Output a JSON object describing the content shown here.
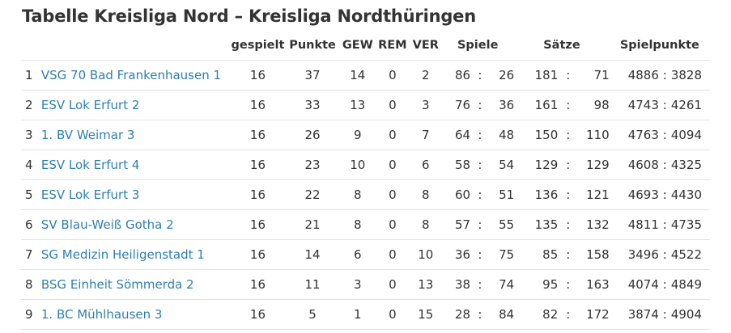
{
  "title": "Tabelle Kreisliga Nord – Kreisliga Nordthüringen",
  "headers": {
    "gespielt": "gespielt",
    "punkte": "Punkte",
    "gew": "GEW",
    "rem": "REM",
    "ver": "VER",
    "spiele": "Spiele",
    "saetze": "Sätze",
    "spielpunkte": "Spielpunkte"
  },
  "separator": ":",
  "rows": [
    {
      "rank": "1",
      "team": "VSG 70 Bad Frankenhausen 1",
      "gespielt": "16",
      "punkte": "37",
      "gew": "14",
      "rem": "0",
      "ver": "2",
      "spiele_w": "86",
      "spiele_l": "26",
      "saetze_w": "181",
      "saetze_l": "71",
      "sp_w": "4886",
      "sp_l": "3828"
    },
    {
      "rank": "2",
      "team": "ESV Lok Erfurt 2",
      "gespielt": "16",
      "punkte": "33",
      "gew": "13",
      "rem": "0",
      "ver": "3",
      "spiele_w": "76",
      "spiele_l": "36",
      "saetze_w": "161",
      "saetze_l": "98",
      "sp_w": "4743",
      "sp_l": "4261"
    },
    {
      "rank": "3",
      "team": "1. BV Weimar 3",
      "gespielt": "16",
      "punkte": "26",
      "gew": "9",
      "rem": "0",
      "ver": "7",
      "spiele_w": "64",
      "spiele_l": "48",
      "saetze_w": "150",
      "saetze_l": "110",
      "sp_w": "4763",
      "sp_l": "4094"
    },
    {
      "rank": "4",
      "team": "ESV Lok Erfurt 4",
      "gespielt": "16",
      "punkte": "23",
      "gew": "10",
      "rem": "0",
      "ver": "6",
      "spiele_w": "58",
      "spiele_l": "54",
      "saetze_w": "129",
      "saetze_l": "129",
      "sp_w": "4608",
      "sp_l": "4325"
    },
    {
      "rank": "5",
      "team": "ESV Lok Erfurt 3",
      "gespielt": "16",
      "punkte": "22",
      "gew": "8",
      "rem": "0",
      "ver": "8",
      "spiele_w": "60",
      "spiele_l": "51",
      "saetze_w": "136",
      "saetze_l": "121",
      "sp_w": "4693",
      "sp_l": "4430"
    },
    {
      "rank": "6",
      "team": "SV Blau-Weiß Gotha 2",
      "gespielt": "16",
      "punkte": "21",
      "gew": "8",
      "rem": "0",
      "ver": "8",
      "spiele_w": "57",
      "spiele_l": "55",
      "saetze_w": "135",
      "saetze_l": "132",
      "sp_w": "4811",
      "sp_l": "4735"
    },
    {
      "rank": "7",
      "team": "SG Medizin Heiligenstadt 1",
      "gespielt": "16",
      "punkte": "14",
      "gew": "6",
      "rem": "0",
      "ver": "10",
      "spiele_w": "36",
      "spiele_l": "75",
      "saetze_w": "85",
      "saetze_l": "158",
      "sp_w": "3496",
      "sp_l": "4522"
    },
    {
      "rank": "8",
      "team": "BSG Einheit Sömmerda 2",
      "gespielt": "16",
      "punkte": "11",
      "gew": "3",
      "rem": "0",
      "ver": "13",
      "spiele_w": "38",
      "spiele_l": "74",
      "saetze_w": "95",
      "saetze_l": "163",
      "sp_w": "4074",
      "sp_l": "4849"
    },
    {
      "rank": "9",
      "team": "1. BC Mühlhausen 3",
      "gespielt": "16",
      "punkte": "5",
      "gew": "1",
      "rem": "0",
      "ver": "15",
      "spiele_w": "28",
      "spiele_l": "84",
      "saetze_w": "82",
      "saetze_l": "172",
      "sp_w": "3874",
      "sp_l": "4904"
    }
  ]
}
